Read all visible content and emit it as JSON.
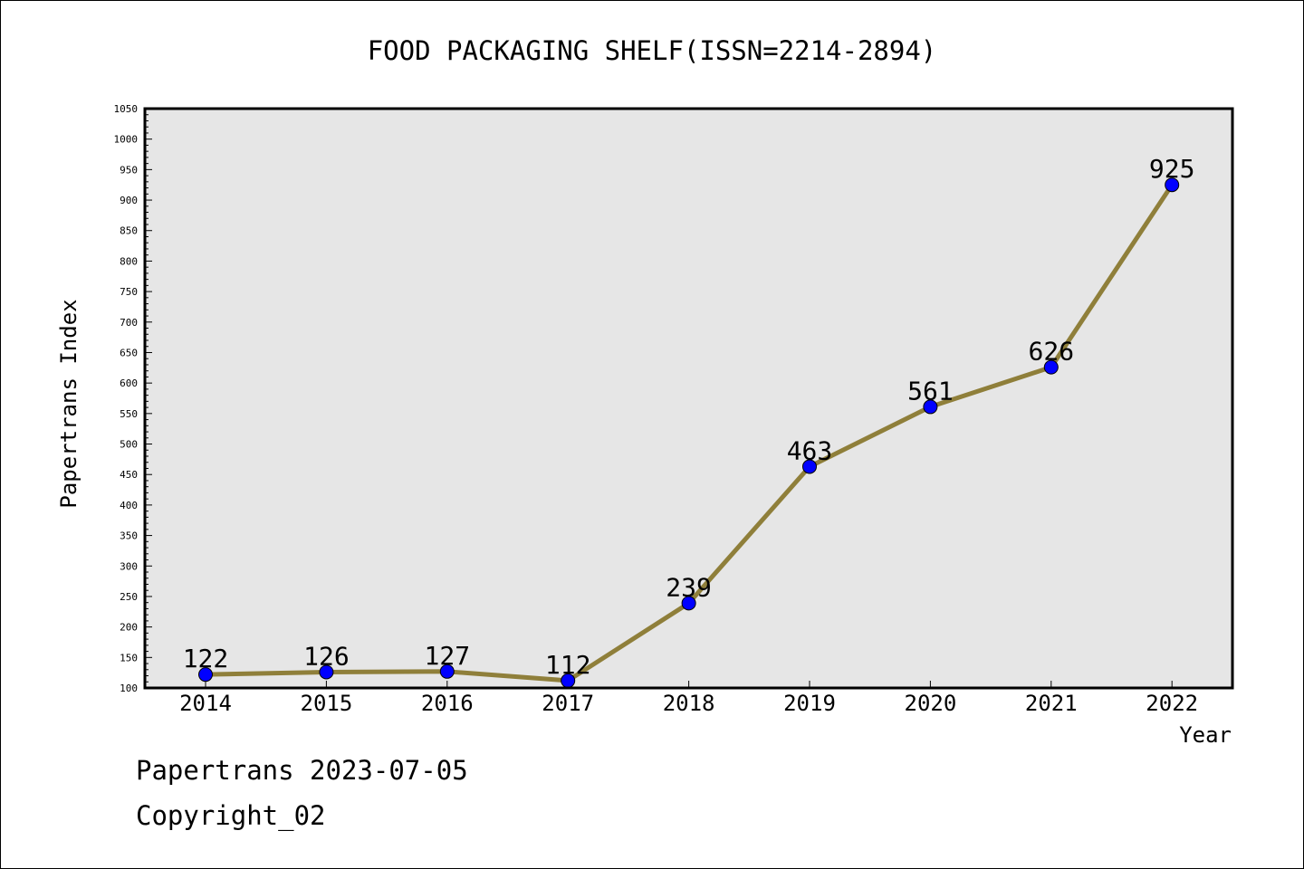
{
  "footer": {
    "line1": "Papertrans 2023-07-05",
    "line2": "Copyright_02"
  },
  "colors": {
    "plot_background": "#e6e6e6",
    "line": "#8f7f3a",
    "marker": "#0000ff",
    "axis": "#000000"
  },
  "chart_data": {
    "type": "line",
    "title": "FOOD PACKAGING SHELF(ISSN=2214-2894)",
    "xlabel": "Year",
    "ylabel": "Papertrans Index",
    "categories": [
      "2014",
      "2015",
      "2016",
      "2017",
      "2018",
      "2019",
      "2020",
      "2021",
      "2022"
    ],
    "series": [
      {
        "values": [
          122,
          126,
          127,
          112,
          239,
          463,
          561,
          626,
          925
        ],
        "labels": [
          "122",
          "126",
          "127",
          "112",
          "239",
          "463",
          "561",
          "626",
          "925"
        ]
      }
    ],
    "ylim": [
      100,
      1050
    ],
    "ytick_step": 50,
    "yminor_step": 10,
    "grid": false,
    "legend": "none"
  }
}
